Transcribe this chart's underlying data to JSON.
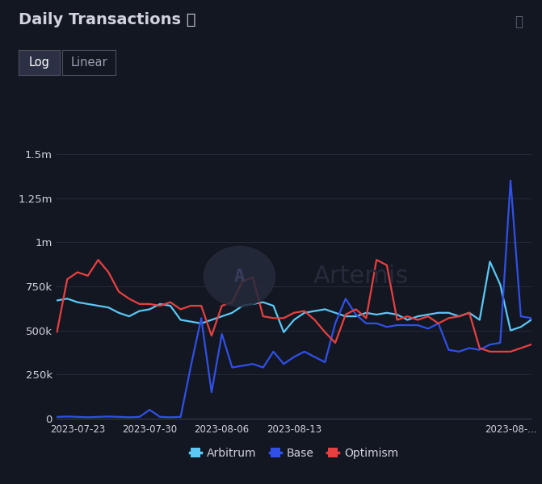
{
  "title": "Daily Transactions ⓘ",
  "background_color": "#131722",
  "plot_bg_color": "#131722",
  "grid_color": "#252b3b",
  "text_color": "#d1d4dc",
  "axis_color": "#363c4e",
  "watermark_text": "Artemis",
  "series": {
    "arbitrum": {
      "label": "Arbitrum",
      "color": "#5bc8f5",
      "linewidth": 1.6,
      "values": [
        670000,
        680000,
        660000,
        650000,
        640000,
        630000,
        600000,
        580000,
        610000,
        620000,
        650000,
        640000,
        560000,
        550000,
        540000,
        560000,
        580000,
        600000,
        640000,
        650000,
        660000,
        640000,
        490000,
        560000,
        600000,
        610000,
        620000,
        600000,
        580000,
        580000,
        600000,
        590000,
        600000,
        590000,
        560000,
        580000,
        590000,
        600000,
        600000,
        580000,
        600000,
        560000,
        890000,
        760000,
        500000,
        520000,
        560000
      ]
    },
    "base": {
      "label": "Base",
      "color": "#3050e8",
      "linewidth": 1.6,
      "values": [
        10000,
        12000,
        10000,
        8000,
        10000,
        12000,
        10000,
        8000,
        10000,
        50000,
        10000,
        8000,
        10000,
        300000,
        570000,
        150000,
        480000,
        290000,
        300000,
        310000,
        290000,
        380000,
        310000,
        350000,
        380000,
        350000,
        320000,
        540000,
        680000,
        590000,
        540000,
        540000,
        520000,
        530000,
        530000,
        530000,
        510000,
        540000,
        390000,
        380000,
        400000,
        390000,
        420000,
        430000,
        1350000,
        580000,
        570000
      ]
    },
    "optimism": {
      "label": "Optimism",
      "color": "#e84040",
      "linewidth": 1.6,
      "values": [
        490000,
        790000,
        830000,
        810000,
        900000,
        830000,
        720000,
        680000,
        650000,
        650000,
        640000,
        660000,
        620000,
        640000,
        640000,
        470000,
        640000,
        660000,
        780000,
        800000,
        580000,
        570000,
        570000,
        600000,
        610000,
        560000,
        490000,
        430000,
        590000,
        620000,
        570000,
        900000,
        870000,
        560000,
        580000,
        560000,
        580000,
        540000,
        570000,
        580000,
        600000,
        400000,
        380000,
        380000,
        380000,
        400000,
        420000
      ]
    }
  },
  "yticks": [
    0,
    250000,
    500000,
    750000,
    1000000,
    1250000,
    1500000
  ],
  "ytick_labels": [
    "0",
    "250k",
    "500k",
    "750k",
    "1m",
    "1.25m",
    "1.5m"
  ],
  "ylim": [
    0,
    1550000
  ],
  "n_points": 47,
  "xtick_positions": [
    2,
    9,
    16,
    23,
    44
  ],
  "xtick_labels": [
    "2023-07-23",
    "2023-07-30",
    "2023-08-06",
    "2023-08-13",
    "2023-08-..."
  ],
  "legend_items": [
    {
      "label": "Arbitrum",
      "color": "#5bc8f5"
    },
    {
      "label": "Base",
      "color": "#3050e8"
    },
    {
      "label": "Optimism",
      "color": "#e84040"
    }
  ]
}
